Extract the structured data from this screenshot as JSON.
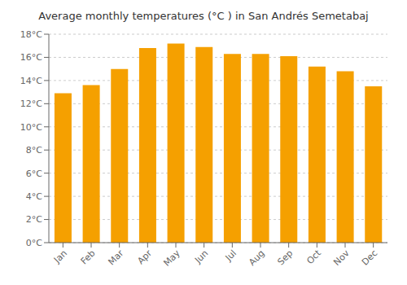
{
  "chart_data": {
    "type": "bar",
    "title": "Average monthly temperatures (°C ) in San Andrés Semetabaj",
    "categories": [
      "Jan",
      "Feb",
      "Mar",
      "Apr",
      "May",
      "Jun",
      "Jul",
      "Aug",
      "Sep",
      "Oct",
      "Nov",
      "Dec"
    ],
    "values": [
      12.9,
      13.6,
      15.0,
      16.8,
      17.2,
      16.9,
      16.3,
      16.3,
      16.1,
      15.2,
      14.8,
      13.5
    ],
    "color": "#F5A000",
    "ylim": [
      0,
      18
    ],
    "yticks": [
      {
        "value": 0,
        "label": "0°C"
      },
      {
        "value": 2,
        "label": "2°C"
      },
      {
        "value": 4,
        "label": "4°C"
      },
      {
        "value": 6,
        "label": "6°C"
      },
      {
        "value": 8,
        "label": "8°C"
      },
      {
        "value": 10,
        "label": "10°C"
      },
      {
        "value": 12,
        "label": "12°C"
      },
      {
        "value": 14,
        "label": "14°C"
      },
      {
        "value": 16,
        "label": "16°C"
      },
      {
        "value": 18,
        "label": "18°C"
      }
    ],
    "grid": true
  }
}
